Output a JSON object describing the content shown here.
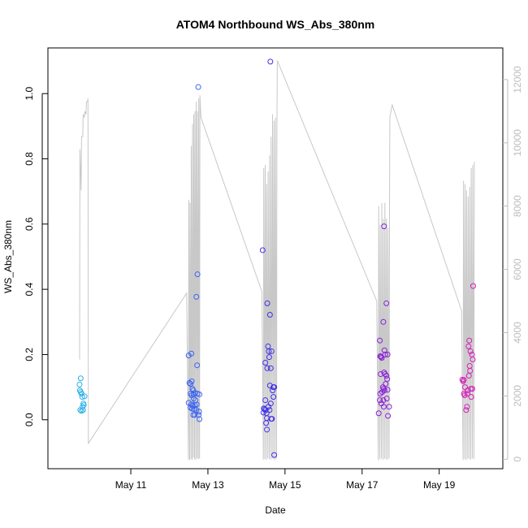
{
  "chart_data": {
    "type": "scatter",
    "title": "ATOM4 Northbound WS_Abs_380nm",
    "xlabel": "Date",
    "ylabel": "WS_Abs_380nm",
    "x_unit": "days since May 10 00:00 (x axis ticks labelled as dates)",
    "xlim": [
      8.85,
      20.65
    ],
    "ylim": [
      -0.15,
      1.14
    ],
    "y2lim": [
      -300,
      13000
    ],
    "x_ticks": [
      {
        "value": 11,
        "label": "May 11"
      },
      {
        "value": 13,
        "label": "May 13"
      },
      {
        "value": 15,
        "label": "May 15"
      },
      {
        "value": 17,
        "label": "May 17"
      },
      {
        "value": 19,
        "label": "May 19"
      }
    ],
    "y_ticks": [
      {
        "value": 0.0,
        "label": "0.0"
      },
      {
        "value": 0.2,
        "label": "0.2"
      },
      {
        "value": 0.4,
        "label": "0.4"
      },
      {
        "value": 0.6,
        "label": "0.6"
      },
      {
        "value": 0.8,
        "label": "0.8"
      },
      {
        "value": 1.0,
        "label": "1.0"
      }
    ],
    "y2_ticks": [
      {
        "value": 0,
        "label": "0"
      },
      {
        "value": 2000,
        "label": "2000"
      },
      {
        "value": 4000,
        "label": "4000"
      },
      {
        "value": 6000,
        "label": "6000"
      },
      {
        "value": 8000,
        "label": "8000"
      },
      {
        "value": 10000,
        "label": "10000"
      },
      {
        "value": 12000,
        "label": "12000"
      }
    ],
    "grid": false,
    "series": [
      {
        "kind": "points",
        "marker": "open-circle",
        "color_note": "colored by time, cyan to blue to purple to magenta",
        "points": [
          {
            "x": 9.7,
            "y": 0.127,
            "color": "#2ab0e6"
          },
          {
            "x": 9.67,
            "y": 0.108,
            "color": "#2ab0e6"
          },
          {
            "x": 9.68,
            "y": 0.09,
            "color": "#2ab0e6"
          },
          {
            "x": 9.7,
            "y": 0.085,
            "color": "#2ab0e6"
          },
          {
            "x": 9.72,
            "y": 0.08,
            "color": "#2ab0e6"
          },
          {
            "x": 9.74,
            "y": 0.07,
            "color": "#2ab0e6"
          },
          {
            "x": 9.8,
            "y": 0.072,
            "color": "#2ab0e6"
          },
          {
            "x": 9.77,
            "y": 0.05,
            "color": "#2ab0e6"
          },
          {
            "x": 9.78,
            "y": 0.045,
            "color": "#2ab0e6"
          },
          {
            "x": 9.75,
            "y": 0.04,
            "color": "#2ab0e6"
          },
          {
            "x": 9.69,
            "y": 0.03,
            "color": "#2ab0e6"
          },
          {
            "x": 9.72,
            "y": 0.027,
            "color": "#2ab0e6"
          },
          {
            "x": 9.76,
            "y": 0.03,
            "color": "#2ab0e6"
          },
          {
            "x": 12.5,
            "y": 0.197,
            "color": "#3c64f0"
          },
          {
            "x": 12.57,
            "y": 0.203,
            "color": "#3c64f0"
          },
          {
            "x": 12.52,
            "y": 0.113,
            "color": "#3c64f0"
          },
          {
            "x": 12.55,
            "y": 0.11,
            "color": "#3c64f0"
          },
          {
            "x": 12.58,
            "y": 0.118,
            "color": "#3c64f0"
          },
          {
            "x": 12.6,
            "y": 0.095,
            "color": "#3c64f0"
          },
          {
            "x": 12.62,
            "y": 0.09,
            "color": "#3c64f0"
          },
          {
            "x": 12.55,
            "y": 0.08,
            "color": "#3c64f0"
          },
          {
            "x": 12.58,
            "y": 0.075,
            "color": "#3c64f0"
          },
          {
            "x": 12.63,
            "y": 0.078,
            "color": "#3c64f0"
          },
          {
            "x": 12.67,
            "y": 0.082,
            "color": "#3c64f0"
          },
          {
            "x": 12.73,
            "y": 0.08,
            "color": "#3c64f0"
          },
          {
            "x": 12.78,
            "y": 0.078,
            "color": "#3c64f0"
          },
          {
            "x": 12.63,
            "y": 0.065,
            "color": "#3c64f0"
          },
          {
            "x": 12.68,
            "y": 0.06,
            "color": "#3c64f0"
          },
          {
            "x": 12.5,
            "y": 0.052,
            "color": "#3c64f0"
          },
          {
            "x": 12.57,
            "y": 0.047,
            "color": "#3c64f0"
          },
          {
            "x": 12.61,
            "y": 0.043,
            "color": "#3c64f0"
          },
          {
            "x": 12.66,
            "y": 0.045,
            "color": "#3c64f0"
          },
          {
            "x": 12.71,
            "y": 0.047,
            "color": "#3c64f0"
          },
          {
            "x": 12.55,
            "y": 0.037,
            "color": "#3c64f0"
          },
          {
            "x": 12.59,
            "y": 0.034,
            "color": "#3c64f0"
          },
          {
            "x": 12.64,
            "y": 0.033,
            "color": "#3c64f0"
          },
          {
            "x": 12.7,
            "y": 0.03,
            "color": "#3c64f0"
          },
          {
            "x": 12.77,
            "y": 0.025,
            "color": "#3c64f0"
          },
          {
            "x": 12.62,
            "y": 0.015,
            "color": "#3c64f0"
          },
          {
            "x": 12.66,
            "y": 0.015,
            "color": "#3c64f0"
          },
          {
            "x": 12.76,
            "y": 0.015,
            "color": "#3c64f0"
          },
          {
            "x": 12.78,
            "y": 0.002,
            "color": "#3c64f0"
          },
          {
            "x": 12.72,
            "y": 0.167,
            "color": "#3c64f0"
          },
          {
            "x": 12.7,
            "y": 0.377,
            "color": "#3c64f0"
          },
          {
            "x": 12.73,
            "y": 0.446,
            "color": "#3c64f0"
          },
          {
            "x": 12.75,
            "y": 1.02,
            "color": "#3c64f0"
          },
          {
            "x": 14.42,
            "y": 0.52,
            "color": "#4030e8"
          },
          {
            "x": 14.62,
            "y": 1.098,
            "color": "#4030e8"
          },
          {
            "x": 14.54,
            "y": 0.357,
            "color": "#4030e8"
          },
          {
            "x": 14.61,
            "y": 0.322,
            "color": "#4030e8"
          },
          {
            "x": 14.56,
            "y": 0.225,
            "color": "#4030e8"
          },
          {
            "x": 14.58,
            "y": 0.21,
            "color": "#4030e8"
          },
          {
            "x": 14.65,
            "y": 0.21,
            "color": "#4030e8"
          },
          {
            "x": 14.59,
            "y": 0.192,
            "color": "#4030e8"
          },
          {
            "x": 14.49,
            "y": 0.175,
            "color": "#4030e8"
          },
          {
            "x": 14.54,
            "y": 0.158,
            "color": "#4030e8"
          },
          {
            "x": 14.63,
            "y": 0.158,
            "color": "#4030e8"
          },
          {
            "x": 14.61,
            "y": 0.105,
            "color": "#4030e8"
          },
          {
            "x": 14.7,
            "y": 0.1,
            "color": "#4030e8"
          },
          {
            "x": 14.72,
            "y": 0.1,
            "color": "#4030e8"
          },
          {
            "x": 14.68,
            "y": 0.09,
            "color": "#4030e8"
          },
          {
            "x": 14.7,
            "y": 0.07,
            "color": "#4030e8"
          },
          {
            "x": 14.49,
            "y": 0.06,
            "color": "#4030e8"
          },
          {
            "x": 14.63,
            "y": 0.05,
            "color": "#4030e8"
          },
          {
            "x": 14.57,
            "y": 0.04,
            "color": "#4030e8"
          },
          {
            "x": 14.45,
            "y": 0.035,
            "color": "#4030e8"
          },
          {
            "x": 14.47,
            "y": 0.032,
            "color": "#4030e8"
          },
          {
            "x": 14.5,
            "y": 0.03,
            "color": "#4030e8"
          },
          {
            "x": 14.6,
            "y": 0.03,
            "color": "#4030e8"
          },
          {
            "x": 14.44,
            "y": 0.022,
            "color": "#4030e8"
          },
          {
            "x": 14.52,
            "y": 0.02,
            "color": "#4030e8"
          },
          {
            "x": 14.53,
            "y": 0.005,
            "color": "#4030e8"
          },
          {
            "x": 14.64,
            "y": 0.003,
            "color": "#4030e8"
          },
          {
            "x": 14.66,
            "y": 0.003,
            "color": "#4030e8"
          },
          {
            "x": 14.51,
            "y": -0.01,
            "color": "#4030e8"
          },
          {
            "x": 14.53,
            "y": -0.03,
            "color": "#4030e8"
          },
          {
            "x": 14.72,
            "y": -0.108,
            "color": "#4030e8"
          },
          {
            "x": 17.46,
            "y": 0.243,
            "color": "#8a1fd6"
          },
          {
            "x": 17.57,
            "y": 0.593,
            "color": "#8a1fd6"
          },
          {
            "x": 17.63,
            "y": 0.357,
            "color": "#8a1fd6"
          },
          {
            "x": 17.55,
            "y": 0.3,
            "color": "#8a1fd6"
          },
          {
            "x": 17.58,
            "y": 0.213,
            "color": "#8a1fd6"
          },
          {
            "x": 17.6,
            "y": 0.2,
            "color": "#8a1fd6"
          },
          {
            "x": 17.66,
            "y": 0.2,
            "color": "#8a1fd6"
          },
          {
            "x": 17.47,
            "y": 0.195,
            "color": "#8a1fd6"
          },
          {
            "x": 17.49,
            "y": 0.193,
            "color": "#8a1fd6"
          },
          {
            "x": 17.51,
            "y": 0.19,
            "color": "#8a1fd6"
          },
          {
            "x": 17.57,
            "y": 0.145,
            "color": "#8a1fd6"
          },
          {
            "x": 17.6,
            "y": 0.14,
            "color": "#8a1fd6"
          },
          {
            "x": 17.63,
            "y": 0.135,
            "color": "#8a1fd6"
          },
          {
            "x": 17.48,
            "y": 0.14,
            "color": "#8a1fd6"
          },
          {
            "x": 17.65,
            "y": 0.125,
            "color": "#8a1fd6"
          },
          {
            "x": 17.61,
            "y": 0.11,
            "color": "#8a1fd6"
          },
          {
            "x": 17.54,
            "y": 0.1,
            "color": "#8a1fd6"
          },
          {
            "x": 17.56,
            "y": 0.095,
            "color": "#8a1fd6"
          },
          {
            "x": 17.58,
            "y": 0.09,
            "color": "#8a1fd6"
          },
          {
            "x": 17.66,
            "y": 0.092,
            "color": "#8a1fd6"
          },
          {
            "x": 17.52,
            "y": 0.085,
            "color": "#8a1fd6"
          },
          {
            "x": 17.47,
            "y": 0.08,
            "color": "#8a1fd6"
          },
          {
            "x": 17.46,
            "y": 0.06,
            "color": "#8a1fd6"
          },
          {
            "x": 17.55,
            "y": 0.06,
            "color": "#8a1fd6"
          },
          {
            "x": 17.64,
            "y": 0.065,
            "color": "#8a1fd6"
          },
          {
            "x": 17.5,
            "y": 0.05,
            "color": "#8a1fd6"
          },
          {
            "x": 17.56,
            "y": 0.04,
            "color": "#8a1fd6"
          },
          {
            "x": 17.7,
            "y": 0.04,
            "color": "#8a1fd6"
          },
          {
            "x": 17.43,
            "y": 0.02,
            "color": "#8a1fd6"
          },
          {
            "x": 17.67,
            "y": 0.012,
            "color": "#8a1fd6"
          },
          {
            "x": 19.88,
            "y": 0.41,
            "color": "#d61fb8"
          },
          {
            "x": 19.78,
            "y": 0.243,
            "color": "#d61fb8"
          },
          {
            "x": 19.76,
            "y": 0.225,
            "color": "#d61fb8"
          },
          {
            "x": 19.81,
            "y": 0.21,
            "color": "#d61fb8"
          },
          {
            "x": 19.85,
            "y": 0.2,
            "color": "#d61fb8"
          },
          {
            "x": 19.87,
            "y": 0.185,
            "color": "#d61fb8"
          },
          {
            "x": 19.79,
            "y": 0.165,
            "color": "#d61fb8"
          },
          {
            "x": 19.8,
            "y": 0.15,
            "color": "#d61fb8"
          },
          {
            "x": 19.77,
            "y": 0.135,
            "color": "#d61fb8"
          },
          {
            "x": 19.6,
            "y": 0.123,
            "color": "#d61fb8"
          },
          {
            "x": 19.62,
            "y": 0.118,
            "color": "#d61fb8"
          },
          {
            "x": 19.64,
            "y": 0.122,
            "color": "#d61fb8"
          },
          {
            "x": 19.67,
            "y": 0.1,
            "color": "#d61fb8"
          },
          {
            "x": 19.82,
            "y": 0.095,
            "color": "#d61fb8"
          },
          {
            "x": 19.86,
            "y": 0.095,
            "color": "#d61fb8"
          },
          {
            "x": 19.74,
            "y": 0.09,
            "color": "#d61fb8"
          },
          {
            "x": 19.64,
            "y": 0.08,
            "color": "#d61fb8"
          },
          {
            "x": 19.66,
            "y": 0.075,
            "color": "#d61fb8"
          },
          {
            "x": 19.73,
            "y": 0.08,
            "color": "#d61fb8"
          },
          {
            "x": 19.83,
            "y": 0.07,
            "color": "#d61fb8"
          },
          {
            "x": 19.72,
            "y": 0.04,
            "color": "#d61fb8"
          },
          {
            "x": 19.7,
            "y": 0.03,
            "color": "#d61fb8"
          }
        ]
      },
      {
        "kind": "line",
        "axis": "right",
        "color": "#c8c8c8",
        "segments": [
          {
            "type": "burst",
            "x0": 9.65,
            "x1": 9.9,
            "lows": [
              3150,
              8500,
              10200,
              10800,
              10900,
              11300
            ],
            "highs": [
              9800,
              10200,
              10900,
              11000,
              11300,
              11400
            ]
          },
          {
            "type": "point",
            "x": 9.9,
            "y": 500
          },
          {
            "type": "point",
            "x": 12.45,
            "y": 5250
          },
          {
            "type": "burst",
            "x0": 12.48,
            "x1": 12.8,
            "lows": [
              -10,
              -30,
              0,
              -20,
              50,
              0,
              -20,
              30,
              0,
              20
            ],
            "highs": [
              8200,
              8100,
              9900,
              10600,
              10900,
              11000,
              11300,
              11000,
              11400,
              11500
            ]
          },
          {
            "type": "point",
            "x": 12.82,
            "y": 10800
          },
          {
            "type": "point",
            "x": 14.4,
            "y": 5300
          },
          {
            "type": "burst",
            "x0": 14.42,
            "x1": 14.8,
            "lows": [
              -10,
              0,
              -20,
              30,
              0,
              -10,
              20,
              0,
              -30,
              20
            ],
            "highs": [
              9200,
              9300,
              8700,
              9100,
              9600,
              10200,
              10900,
              10700,
              10800,
              10500
            ]
          },
          {
            "type": "point",
            "x": 14.8,
            "y": 12600
          },
          {
            "type": "point",
            "x": 17.38,
            "y": 5000
          },
          {
            "type": "burst",
            "x0": 17.4,
            "x1": 17.72,
            "lows": [
              -30,
              0,
              20,
              -20,
              10,
              0,
              -20,
              30
            ],
            "highs": [
              8000,
              7400,
              8100,
              7600,
              8100,
              7600,
              7300,
              7800
            ]
          },
          {
            "type": "point",
            "x": 17.72,
            "y": 10800
          },
          {
            "type": "point",
            "x": 17.78,
            "y": 11200
          },
          {
            "type": "point",
            "x": 19.58,
            "y": 4700
          },
          {
            "type": "burst",
            "x0": 19.6,
            "x1": 19.92,
            "lows": [
              -20,
              0,
              -30,
              20,
              0,
              -10,
              20,
              0
            ],
            "highs": [
              8800,
              8700,
              8500,
              8300,
              8600,
              9200,
              9300,
              9400
            ]
          }
        ]
      }
    ]
  }
}
